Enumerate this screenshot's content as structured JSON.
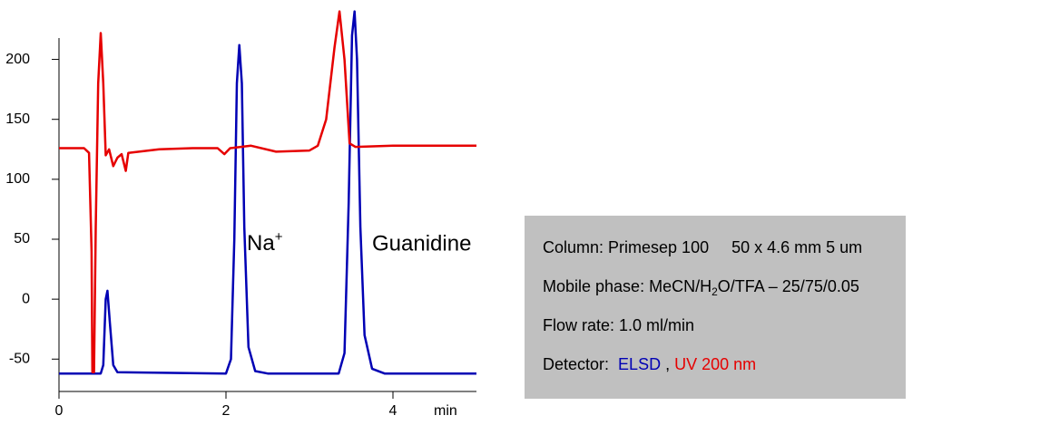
{
  "chart_data": {
    "type": "line",
    "x_label": "min",
    "xlim": [
      0,
      5
    ],
    "xticks": [
      0,
      2,
      4
    ],
    "ylim": [
      -77,
      242
    ],
    "yticks": [
      -50,
      0,
      50,
      100,
      150,
      200
    ],
    "series": [
      {
        "name": "ELSD",
        "color": "#0000b4",
        "x": [
          0,
          0.5,
          0.53,
          0.56,
          0.58,
          0.61,
          0.65,
          0.7,
          2.0,
          2.06,
          2.1,
          2.13,
          2.16,
          2.19,
          2.22,
          2.27,
          2.35,
          2.5,
          3.35,
          3.42,
          3.47,
          3.51,
          3.54,
          3.57,
          3.61,
          3.66,
          3.75,
          3.9,
          5.0
        ],
        "values": [
          -62,
          -62,
          -55,
          0,
          7,
          -20,
          -55,
          -61,
          -62,
          -50,
          50,
          180,
          212,
          180,
          60,
          -40,
          -60,
          -62,
          -62,
          -45,
          80,
          220,
          240,
          200,
          60,
          -30,
          -58,
          -62,
          -62
        ]
      },
      {
        "name": "UV 200 nm",
        "color": "#e60000",
        "x": [
          0,
          0.3,
          0.36,
          0.39,
          0.4,
          0.42,
          0.44,
          0.47,
          0.5,
          0.53,
          0.56,
          0.6,
          0.65,
          0.7,
          0.75,
          0.8,
          0.83,
          1.2,
          1.6,
          1.9,
          1.98,
          2.05,
          2.3,
          2.6,
          3.0,
          3.1,
          3.2,
          3.3,
          3.36,
          3.42,
          3.48,
          3.55,
          4.0,
          5.0
        ],
        "values": [
          126,
          126,
          122,
          40,
          -61,
          -61,
          60,
          180,
          222,
          180,
          120,
          125,
          111,
          118,
          121,
          107,
          122,
          125,
          126,
          126,
          121,
          126,
          128,
          123,
          124,
          128,
          150,
          210,
          240,
          200,
          130,
          127,
          128,
          128
        ]
      }
    ],
    "annotations": [
      {
        "text": "Na",
        "sup": "+"
      },
      {
        "text": "Guanidine"
      }
    ],
    "info": {
      "column": "Column: Primesep 100     50 x 4.6 mm 5 um",
      "mobile_phase": [
        "Mobile phase: MeCN/H",
        "2",
        "O/TFA – 25/75/0.05"
      ],
      "flow_rate": "Flow rate: 1.0 ml/min",
      "detector": [
        "Detector:",
        ","
      ]
    }
  }
}
